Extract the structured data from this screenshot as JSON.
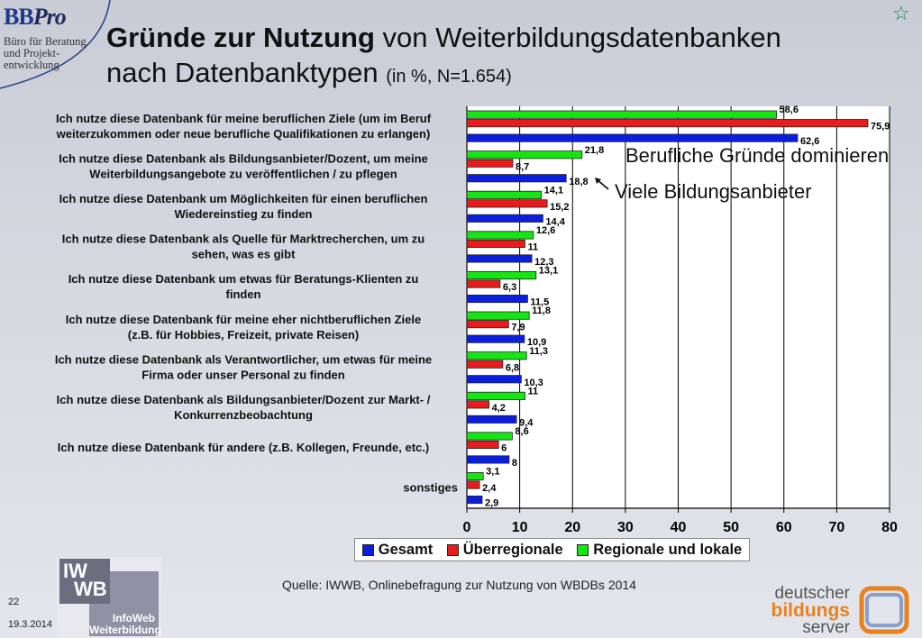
{
  "logo": {
    "brand": "BB",
    "brand_italic": "Pro",
    "line1": "Büro für Beratung",
    "line2": "und Projekt-",
    "line3": "entwicklung"
  },
  "title": {
    "bold": "Gründe zur Nutzung",
    "rest": " von Weiterbildungsdatenbanken",
    "line2": "nach Datenbanktypen",
    "small": "(in %, N=1.654)"
  },
  "annotations": {
    "note1": "Berufliche Gründe dominieren",
    "note2": "Viele Bildungsanbieter"
  },
  "source": "Quelle: IWWB, Onlinebefragung zur Nutzung von WBDBs 2014",
  "footer": {
    "page": "22",
    "date": "19.3.2014"
  },
  "iwwb_logo": {
    "box1a": "IW",
    "box1b": "WB",
    "line1": "InfoWeb",
    "line2": "Weiterbildung"
  },
  "partner_logo": {
    "line1": "deutscher",
    "line2": "bildungs",
    "line3": "server"
  },
  "colors": {
    "gesamt": "#0a1ee0",
    "ueberregionale": "#e81c1c",
    "regionale": "#14e614",
    "star": "#1a8a3a",
    "accent_orange": "#e8821e"
  },
  "chart_data": {
    "type": "bar",
    "orientation": "horizontal",
    "categories": [
      [
        "Ich nutze diese Datenbank für meine beruflichen Ziele (um im Beruf",
        "weiterzukommen oder neue berufliche Qualifikationen zu erlangen)"
      ],
      [
        "Ich nutze diese Datenbank als Bildungsanbieter/Dozent, um meine",
        "Weiterbildungsangebote zu veröffentlichen / zu pflegen"
      ],
      [
        "Ich nutze diese Datenbank um Möglichkeiten für einen beruflichen",
        "Wiedereinstieg zu finden"
      ],
      [
        "Ich nutze diese Datenbank als Quelle für Marktrecherchen, um zu",
        "sehen, was es gibt"
      ],
      [
        "Ich nutze diese Datenbank um etwas für Beratungs-Klienten zu",
        "finden"
      ],
      [
        "Ich nutze diese Datenbank für meine eher nichtberuflichen Ziele",
        "(z.B. für Hobbies, Freizeit, private Reisen)"
      ],
      [
        "Ich nutze diese Datenbank als Verantwortlicher, um etwas für meine",
        "Firma oder unser Personal zu finden"
      ],
      [
        "Ich nutze diese Datenbank als Bildungsanbieter/Dozent zur Markt- /",
        "Konkurrenzbeobachtung"
      ],
      [
        "Ich nutze diese Datenbank für andere (z.B. Kollegen, Freunde, etc.)"
      ],
      [
        "sonstiges"
      ]
    ],
    "series": [
      {
        "name": "Regionale und lokale",
        "color": "#14e614",
        "values": [
          58.6,
          21.8,
          14.1,
          12.6,
          13.1,
          11.8,
          11.3,
          11,
          8.6,
          3.1
        ],
        "labels": [
          "58,6",
          "21,8",
          "14,1",
          "12,6",
          "13,1",
          "11,8",
          "11,3",
          "11",
          "8,6",
          "3,1"
        ]
      },
      {
        "name": "Überregionale",
        "color": "#e81c1c",
        "values": [
          75.9,
          8.7,
          15.2,
          11,
          6.3,
          7.9,
          6.8,
          4.2,
          6,
          2.4
        ],
        "labels": [
          "75,9",
          "8,7",
          "15,2",
          "11",
          "6,3",
          "7,9",
          "6,8",
          "4,2",
          "6",
          "2,4"
        ]
      },
      {
        "name": "Gesamt",
        "color": "#0a1ee0",
        "values": [
          62.6,
          18.8,
          14.4,
          12.3,
          11.5,
          10.9,
          10.3,
          9.4,
          8,
          2.9
        ],
        "labels": [
          "62,6",
          "18,8",
          "14,4",
          "12,3",
          "11,5",
          "10,9",
          "10,3",
          "9,4",
          "8",
          "2,9"
        ]
      }
    ],
    "legend_order": [
      "Gesamt",
      "Überregionale",
      "Regionale und lokale"
    ],
    "xlim": [
      0,
      80
    ],
    "xticks": [
      0,
      10,
      20,
      30,
      40,
      50,
      60,
      70,
      80
    ],
    "grid": "vertical",
    "legend_position": "bottom"
  }
}
